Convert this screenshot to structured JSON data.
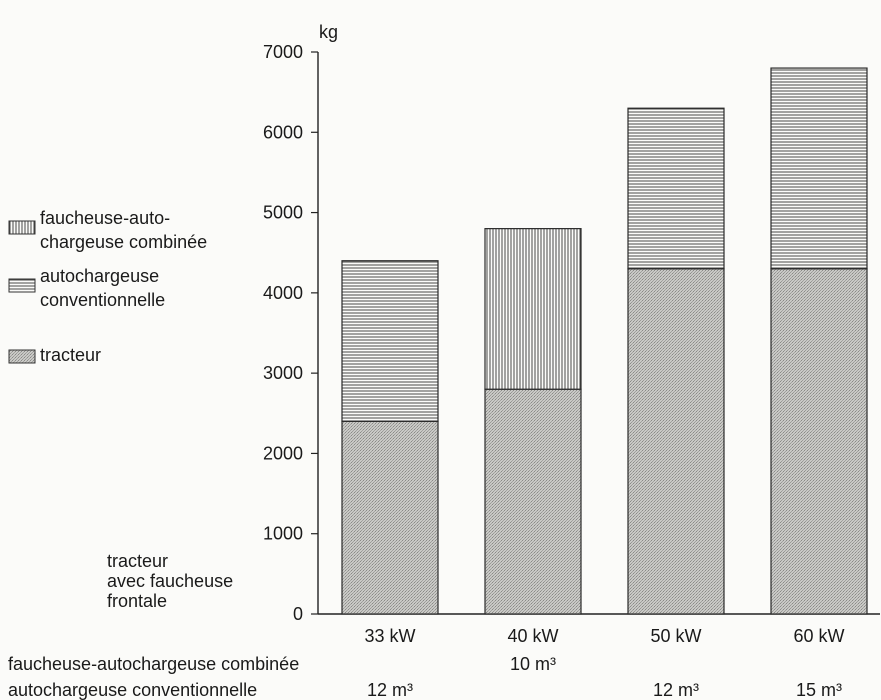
{
  "chart_data": {
    "type": "bar",
    "stacked": true,
    "ylabel": "kg",
    "ylim": [
      0,
      7000
    ],
    "yticks": [
      0,
      1000,
      2000,
      3000,
      4000,
      5000,
      6000,
      7000
    ],
    "grid": false,
    "legend_position": "left",
    "categories": [
      "33 kW",
      "40 kW",
      "50 kW",
      "60 kW"
    ],
    "series": [
      {
        "name": "tracteur",
        "key": "tracteur",
        "values": [
          2400,
          2800,
          4300,
          4300
        ]
      },
      {
        "name": "autochargeuse conventionnelle",
        "key": "conv",
        "values": [
          2000,
          0,
          2000,
          2500
        ]
      },
      {
        "name": "faucheuse-auto- chargeuse combinée",
        "key": "comb",
        "values": [
          0,
          2000,
          0,
          0
        ]
      }
    ],
    "legend": [
      {
        "key": "comb",
        "lines": [
          "faucheuse-auto-",
          "chargeuse combinée"
        ]
      },
      {
        "key": "conv",
        "lines": [
          "autochargeuse",
          "conventionnelle"
        ]
      },
      {
        "key": "tracteur",
        "lines": [
          "tracteur"
        ]
      }
    ],
    "annotations": {
      "tractor_note": [
        "tracteur",
        "avec faucheuse",
        "frontale"
      ],
      "row_combined_label": "faucheuse-autochargeuse combinée",
      "row_combined_values": [
        "",
        "10 m³",
        "",
        ""
      ],
      "row_conventional_label": "autochargeuse conventionnelle",
      "row_conventional_values": [
        "12 m³",
        "",
        "12 m³",
        "15 m³"
      ]
    }
  }
}
